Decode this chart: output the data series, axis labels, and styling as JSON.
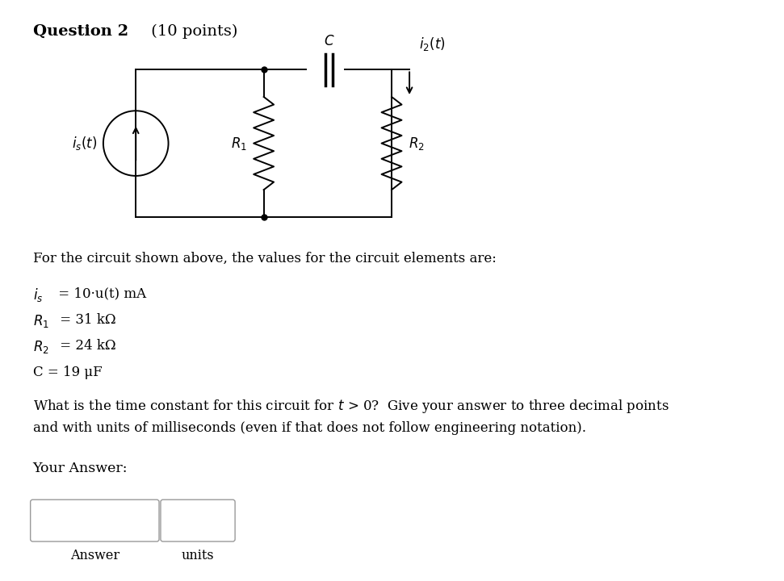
{
  "title": "Question 2",
  "title_suffix": " (10 points)",
  "bg_color": "#ffffff",
  "text_color": "#000000",
  "circuit_color": "#000000",
  "fig_width": 9.71,
  "fig_height": 7.2,
  "body_text_1": "For the circuit shown above, the values for the circuit elements are:",
  "param_is": "= 10·u(t) mA",
  "param_R1": "= 31 kΩ",
  "param_R2": "= 24 kΩ",
  "param_C": "C = 19 μF",
  "answer_label": "Your Answer:",
  "answer_box_label": "Answer",
  "units_box_label": "units"
}
